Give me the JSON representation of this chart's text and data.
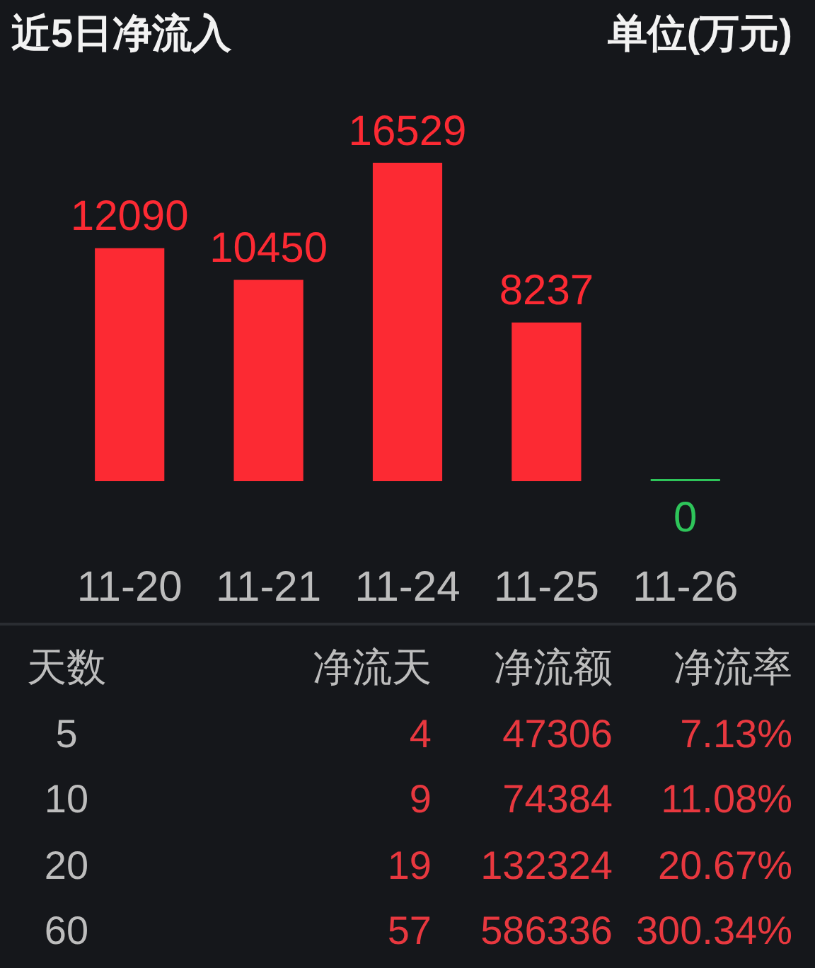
{
  "chart_data": [
    {
      "type": "bar",
      "title": "近5日净流入",
      "ylabel": "单位(万元)",
      "categories": [
        "11-20",
        "11-21",
        "11-24",
        "11-25",
        "11-26"
      ],
      "values": [
        12090,
        10450,
        16529,
        8237,
        0
      ],
      "colors": [
        "#fc2a33",
        "#fc2a33",
        "#fc2a33",
        "#fc2a33",
        "#2ec55a"
      ],
      "data_labels": true
    },
    {
      "type": "other",
      "categories": [
        "天数",
        "净流天",
        "净流额",
        "净流率"
      ],
      "annotations": [
        "5",
        "4",
        "47306",
        "7.13%",
        "10",
        "9",
        "74384",
        "11.08%",
        "20",
        "19",
        "132324",
        "20.67%",
        "60",
        "57",
        "586336",
        "300.34%"
      ],
      "colors": [
        "#bdbdbd",
        "#e8383f",
        "#e8383f",
        "#e8383f"
      ]
    }
  ]
}
